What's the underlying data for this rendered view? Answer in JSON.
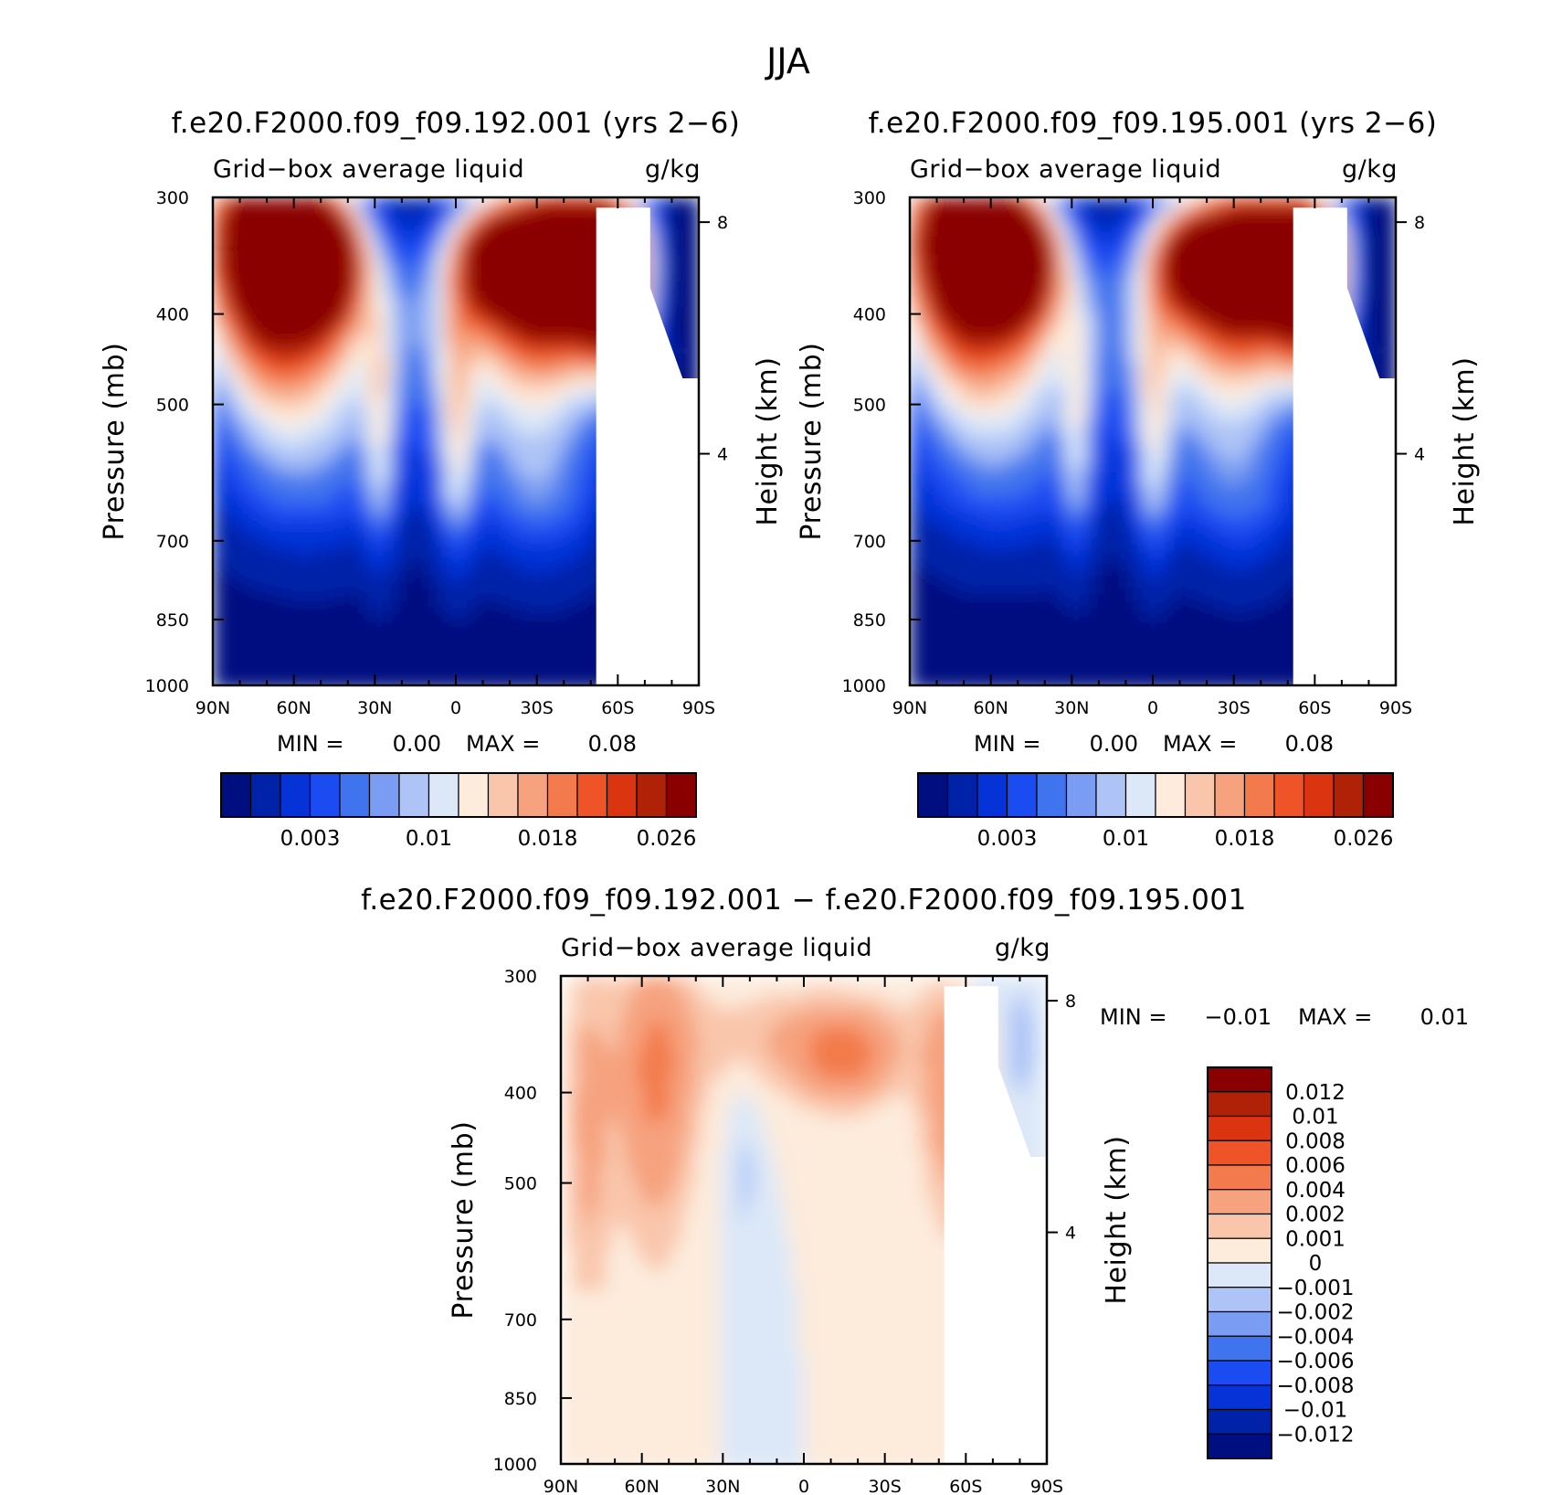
{
  "figure_title": "JJA",
  "panels": [
    {
      "title": "f.e20.F2000.f09_f09.192.001 (yrs 2−6)",
      "variable": "Grid−box average liquid",
      "units": "g/kg",
      "minmax": {
        "min_label": "MIN =",
        "min": "0.00",
        "max_label": "MAX =",
        "max": "0.08"
      },
      "colorbar_ticks": [
        "0.003",
        "0.01",
        "0.018",
        "0.026"
      ]
    },
    {
      "title": "f.e20.F2000.f09_f09.195.001 (yrs 2−6)",
      "variable": "Grid−box average liquid",
      "units": "g/kg",
      "minmax": {
        "min_label": "MIN =",
        "min": "0.00",
        "max_label": "MAX =",
        "max": "0.08"
      },
      "colorbar_ticks": [
        "0.003",
        "0.01",
        "0.018",
        "0.026"
      ]
    },
    {
      "title": "f.e20.F2000.f09_f09.192.001 − f.e20.F2000.f09_f09.195.001",
      "variable": "Grid−box average liquid",
      "units": "g/kg",
      "minmax": {
        "min_label": "MIN =",
        "min": "−0.01",
        "max_label": "MAX =",
        "max": "0.01"
      },
      "colorbar_ticks": [
        "0.012",
        "0.01",
        "0.008",
        "0.006",
        "0.004",
        "0.002",
        "0.001",
        "0",
        "−0.001",
        "−0.002",
        "−0.004",
        "−0.006",
        "−0.008",
        "−0.01",
        "−0.012"
      ]
    }
  ],
  "axes": {
    "ylabel": "Pressure (mb)",
    "y2label": "Height (km)",
    "x_ticks": [
      "90N",
      "60N",
      "30N",
      "0",
      "30S",
      "60S",
      "90S"
    ],
    "y_ticks": [
      "300",
      "400",
      "500",
      "700",
      "850",
      "1000"
    ],
    "y2_ticks": [
      "8",
      "4"
    ]
  },
  "colors": {
    "abs_palette": [
      "#000F80",
      "#0022A8",
      "#0533D8",
      "#1A4CF2",
      "#4073EE",
      "#7A9CF2",
      "#AEC4F6",
      "#DCE8F8",
      "#FDEBDC",
      "#F9C6AC",
      "#F6A27E",
      "#F37A4C",
      "#EE5428",
      "#DA3410",
      "#B02208",
      "#8A0000"
    ],
    "diff_palette": [
      "#000F80",
      "#0022A8",
      "#0533D8",
      "#1A4CF2",
      "#4073EE",
      "#7A9CF2",
      "#AEC4F6",
      "#DCE8F8",
      "#FDEBDC",
      "#F9C6AC",
      "#F6A27E",
      "#F37A4C",
      "#EE5428",
      "#DA3410",
      "#B02208",
      "#8A0000"
    ]
  },
  "chart_data": [
    {
      "type": "heatmap",
      "title": "f.e20.F2000.f09_f09.192.001 (yrs 2−6)",
      "xlabel": "",
      "ylabel": "Pressure (mb)",
      "y2label": "Height (km)",
      "x_domain": [
        "90N",
        "90S"
      ],
      "y_range_mb": [
        1000,
        300
      ],
      "color_levels": [
        0.001,
        0.003,
        0.005,
        0.007,
        0.009,
        0.01,
        0.012,
        0.014,
        0.016,
        0.018,
        0.02,
        0.022,
        0.024,
        0.026,
        0.028
      ],
      "min": 0.0,
      "max": 0.08
    },
    {
      "type": "heatmap",
      "title": "f.e20.F2000.f09_f09.195.001 (yrs 2−6)",
      "xlabel": "",
      "ylabel": "Pressure (mb)",
      "y2label": "Height (km)",
      "x_domain": [
        "90N",
        "90S"
      ],
      "y_range_mb": [
        1000,
        300
      ],
      "color_levels": [
        0.001,
        0.003,
        0.005,
        0.007,
        0.009,
        0.01,
        0.012,
        0.014,
        0.016,
        0.018,
        0.02,
        0.022,
        0.024,
        0.026,
        0.028
      ],
      "min": 0.0,
      "max": 0.08
    },
    {
      "type": "heatmap",
      "title": "f.e20.F2000.f09_f09.192.001 − f.e20.F2000.f09_f09.195.001",
      "xlabel": "",
      "ylabel": "Pressure (mb)",
      "y2label": "Height (km)",
      "x_domain": [
        "90N",
        "90S"
      ],
      "y_range_mb": [
        1000,
        300
      ],
      "color_levels": [
        -0.012,
        -0.01,
        -0.008,
        -0.006,
        -0.004,
        -0.002,
        -0.001,
        0,
        0.001,
        0.002,
        0.004,
        0.006,
        0.008,
        0.01,
        0.012
      ],
      "min": -0.01,
      "max": 0.01
    }
  ]
}
